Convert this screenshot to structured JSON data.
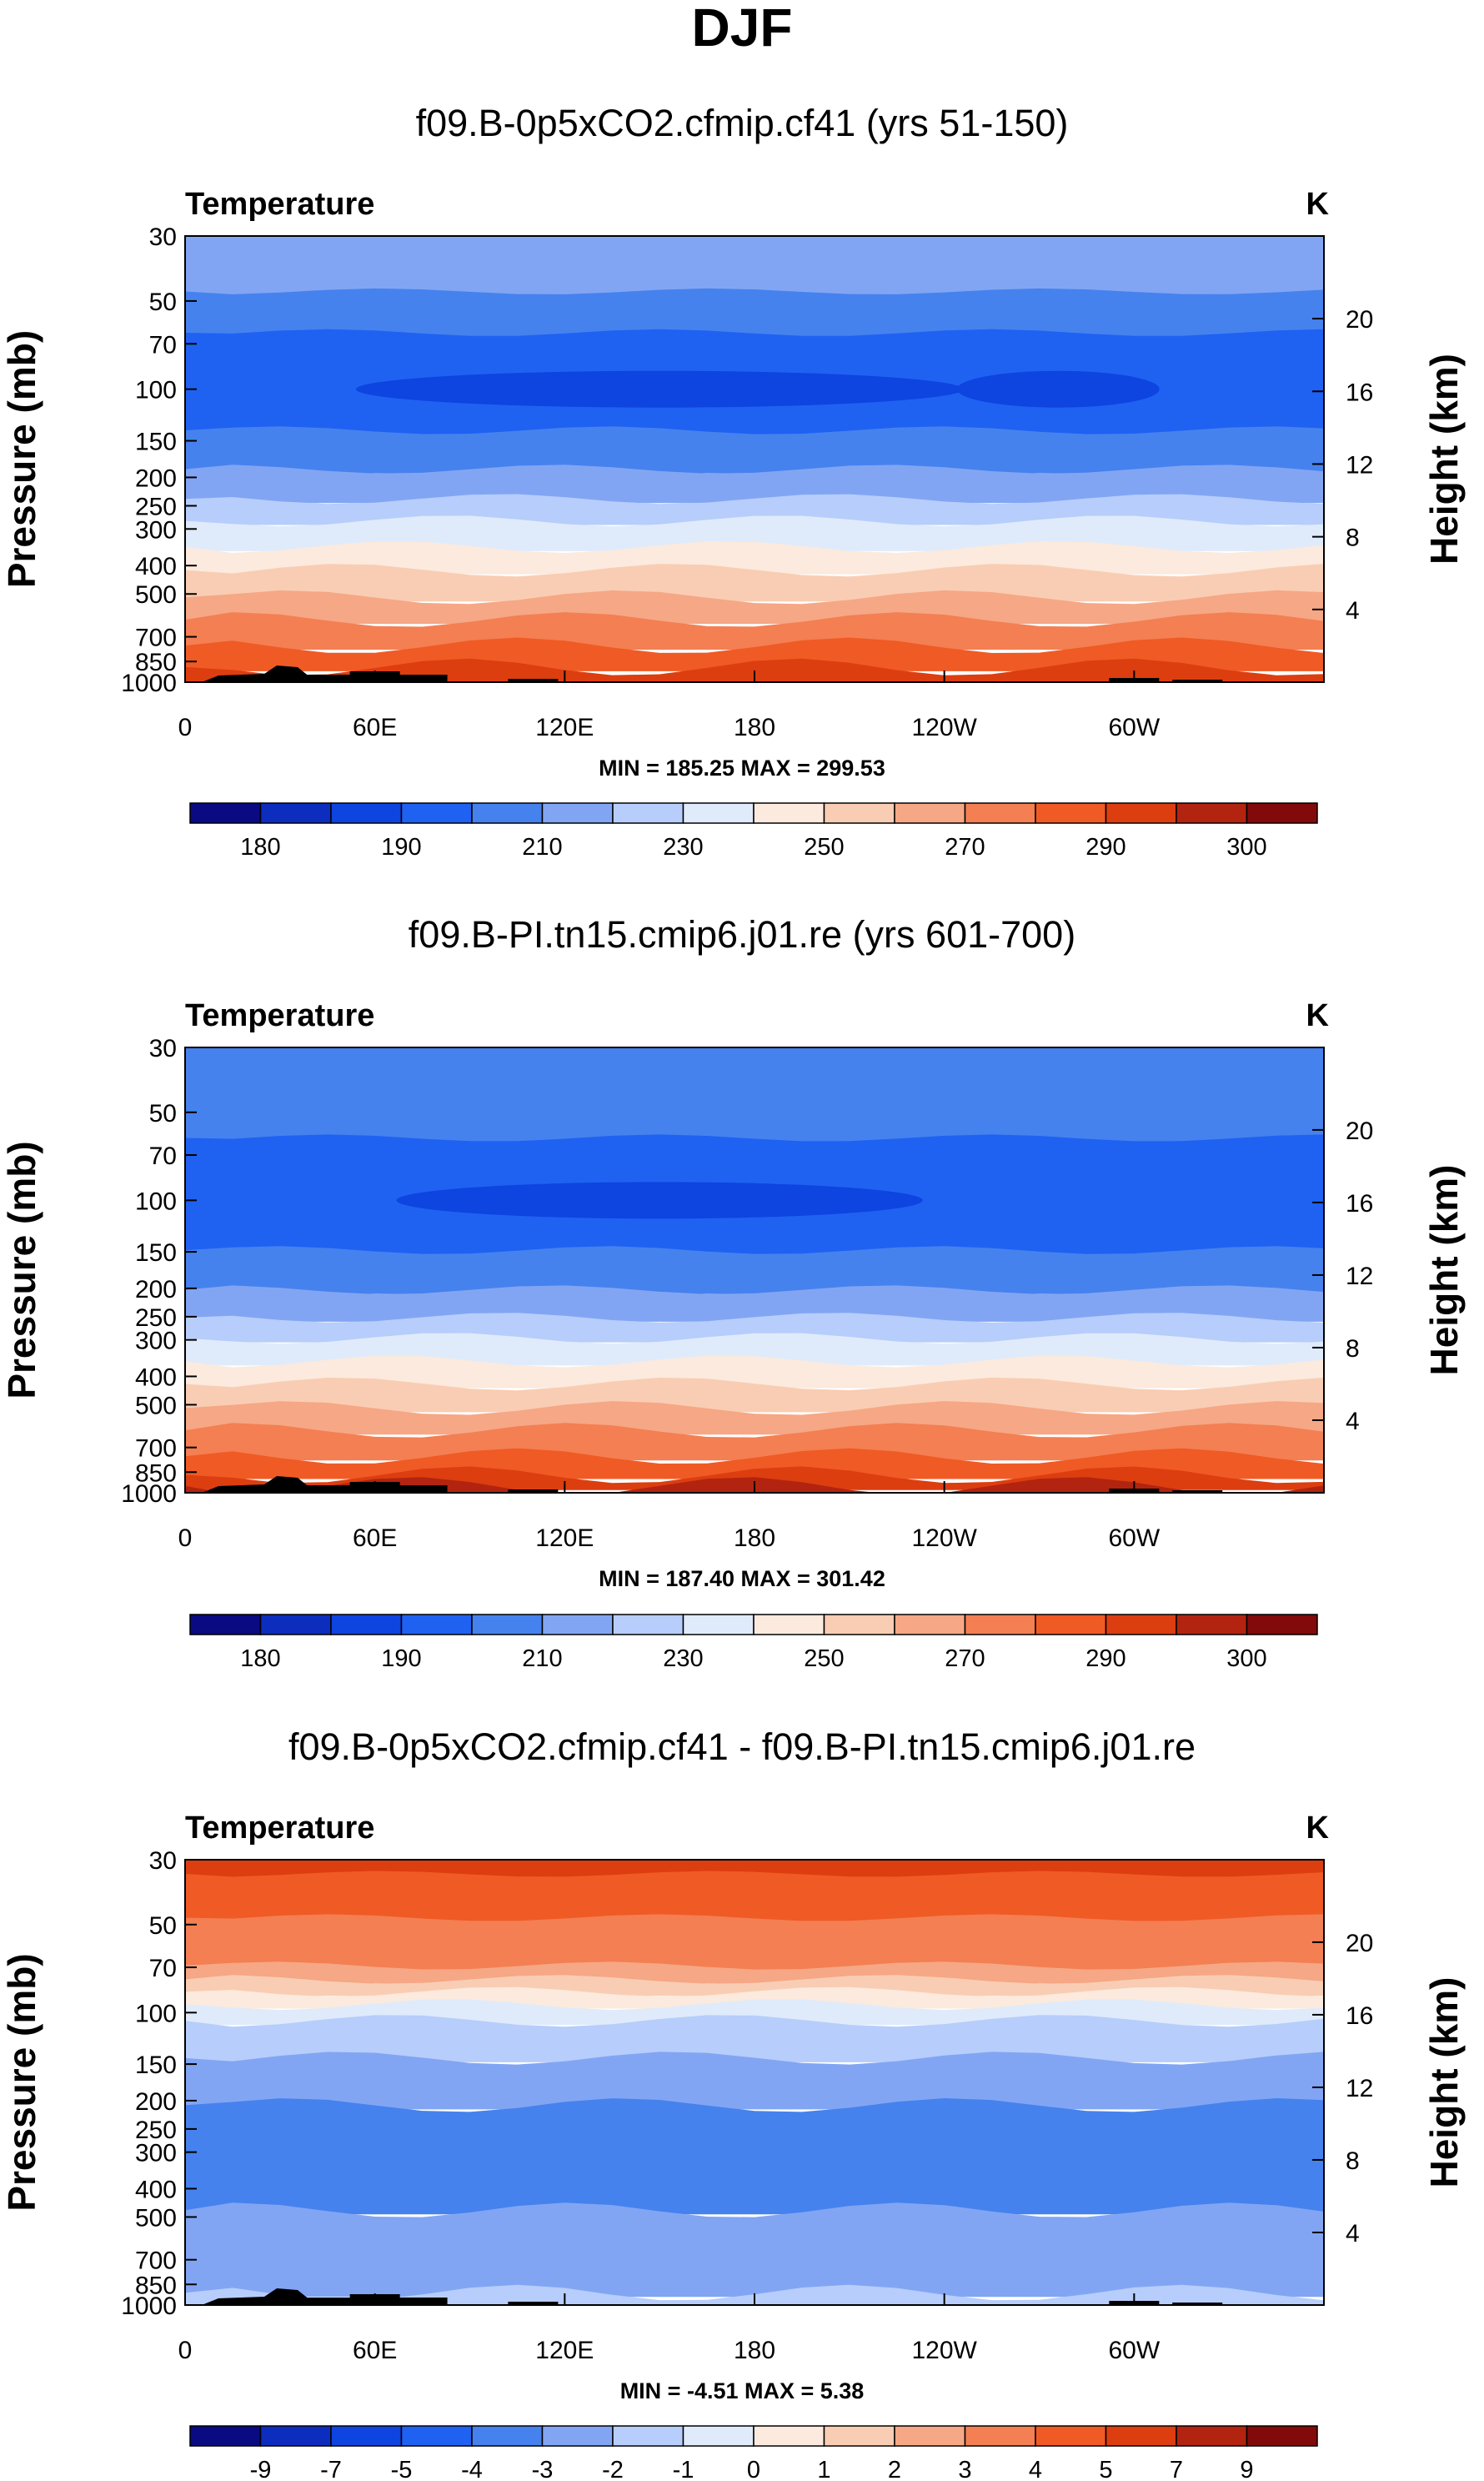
{
  "page_title": "DJF",
  "colors": {
    "palette": [
      "#0a0a82",
      "#0c2dbe",
      "#0e44e0",
      "#1f62f2",
      "#4582ee",
      "#82a5f3",
      "#b7cdfb",
      "#dfebfb",
      "#fbeadd",
      "#f9cdb3",
      "#f6a785",
      "#f37f53",
      "#f05a25",
      "#dc3e10",
      "#b22410",
      "#820a0a"
    ],
    "land": "#000000"
  },
  "chart_data": [
    {
      "type": "contour",
      "id": "p1",
      "title": "f09.B-0p5xCO2.cfmip.cf41 (yrs 51-150)",
      "var_label": "Temperature",
      "units": "K",
      "ylabel": "Pressure (mb)",
      "ylabel_right": "Height (km)",
      "y_ticks": [
        "30",
        "50",
        "70",
        "100",
        "150",
        "200",
        "250",
        "300",
        "400",
        "500",
        "700",
        "850",
        "1000"
      ],
      "y_tick_values": [
        30,
        50,
        70,
        100,
        150,
        200,
        250,
        300,
        400,
        500,
        700,
        850,
        1000
      ],
      "ylim": [
        1000,
        30
      ],
      "height_ticks": [
        "20",
        "16",
        "12",
        "8",
        "4"
      ],
      "height_tick_values": [
        20,
        16,
        12,
        8,
        4
      ],
      "x_ticks": [
        "0",
        "60E",
        "120E",
        "180",
        "120W",
        "60W"
      ],
      "x_tick_values": [
        0,
        60,
        120,
        180,
        240,
        300
      ],
      "xlim": [
        0,
        360
      ],
      "minmax": "MIN = 185.25   MAX = 299.53",
      "colorbar_labels": [
        "180",
        "190",
        "210",
        "230",
        "250",
        "270",
        "290",
        "300"
      ],
      "bands": [
        {
          "top": 30,
          "bottom": 47,
          "color": 5
        },
        {
          "top": 47,
          "bottom": 65,
          "color": 4
        },
        {
          "top": 65,
          "bottom": 140,
          "color": 3
        },
        {
          "top": 140,
          "bottom": 190,
          "color": 4
        },
        {
          "top": 190,
          "bottom": 240,
          "color": 5
        },
        {
          "top": 240,
          "bottom": 285,
          "color": 6
        },
        {
          "top": 285,
          "bottom": 350,
          "color": 7
        },
        {
          "top": 350,
          "bottom": 420,
          "color": 8
        },
        {
          "top": 420,
          "bottom": 520,
          "color": 9
        },
        {
          "top": 520,
          "bottom": 620,
          "color": 10
        },
        {
          "top": 620,
          "bottom": 760,
          "color": 11
        },
        {
          "top": 760,
          "bottom": 900,
          "color": 12
        },
        {
          "top": 900,
          "bottom": 1000,
          "color": 13
        }
      ],
      "cores": [
        {
          "lon": 150,
          "p": 100,
          "dlon": 60,
          "color": 2
        },
        {
          "lon": 276,
          "p": 100,
          "dlon": 20,
          "color": 2
        }
      ]
    },
    {
      "type": "contour",
      "id": "p2",
      "title": "f09.B-PI.tn15.cmip6.j01.re (yrs 601-700)",
      "var_label": "Temperature",
      "units": "K",
      "ylabel": "Pressure (mb)",
      "ylabel_right": "Height (km)",
      "y_ticks": [
        "30",
        "50",
        "70",
        "100",
        "150",
        "200",
        "250",
        "300",
        "400",
        "500",
        "700",
        "850",
        "1000"
      ],
      "y_tick_values": [
        30,
        50,
        70,
        100,
        150,
        200,
        250,
        300,
        400,
        500,
        700,
        850,
        1000
      ],
      "ylim": [
        1000,
        30
      ],
      "height_ticks": [
        "20",
        "16",
        "12",
        "8",
        "4"
      ],
      "height_tick_values": [
        20,
        16,
        12,
        8,
        4
      ],
      "x_ticks": [
        "0",
        "60E",
        "120E",
        "180",
        "120W",
        "60W"
      ],
      "x_tick_values": [
        0,
        60,
        120,
        180,
        240,
        300
      ],
      "xlim": [
        0,
        360
      ],
      "minmax": "MIN = 187.40   MAX = 301.42",
      "colorbar_labels": [
        "180",
        "190",
        "210",
        "230",
        "250",
        "270",
        "290",
        "300"
      ],
      "bands": [
        {
          "top": 30,
          "bottom": 42,
          "color": 4
        },
        {
          "top": 42,
          "bottom": 62,
          "color": 4
        },
        {
          "top": 62,
          "bottom": 150,
          "color": 3
        },
        {
          "top": 150,
          "bottom": 205,
          "color": 4
        },
        {
          "top": 205,
          "bottom": 255,
          "color": 5
        },
        {
          "top": 255,
          "bottom": 300,
          "color": 6
        },
        {
          "top": 300,
          "bottom": 360,
          "color": 7
        },
        {
          "top": 360,
          "bottom": 430,
          "color": 8
        },
        {
          "top": 430,
          "bottom": 520,
          "color": 9
        },
        {
          "top": 520,
          "bottom": 620,
          "color": 10
        },
        {
          "top": 620,
          "bottom": 760,
          "color": 11
        },
        {
          "top": 760,
          "bottom": 880,
          "color": 12
        },
        {
          "top": 880,
          "bottom": 960,
          "color": 13
        },
        {
          "top": 960,
          "bottom": 1000,
          "color": 14
        }
      ],
      "cores": [
        {
          "lon": 150,
          "p": 100,
          "dlon": 52,
          "color": 2
        }
      ]
    },
    {
      "type": "contour",
      "id": "p3",
      "title": "f09.B-0p5xCO2.cfmip.cf41 - f09.B-PI.tn15.cmip6.j01.re",
      "var_label": "Temperature",
      "units": "K",
      "ylabel": "Pressure (mb)",
      "ylabel_right": "Height (km)",
      "y_ticks": [
        "30",
        "50",
        "70",
        "100",
        "150",
        "200",
        "250",
        "300",
        "400",
        "500",
        "700",
        "850",
        "1000"
      ],
      "y_tick_values": [
        30,
        50,
        70,
        100,
        150,
        200,
        250,
        300,
        400,
        500,
        700,
        850,
        1000
      ],
      "ylim": [
        1000,
        30
      ],
      "height_ticks": [
        "20",
        "16",
        "12",
        "8",
        "4"
      ],
      "height_tick_values": [
        20,
        16,
        12,
        8,
        4
      ],
      "x_ticks": [
        "0",
        "60E",
        "120E",
        "180",
        "120W",
        "60W"
      ],
      "x_tick_values": [
        0,
        60,
        120,
        180,
        240,
        300
      ],
      "xlim": [
        0,
        360
      ],
      "minmax": "MIN =  -4.51   MAX =   5.38",
      "colorbar_labels": [
        "-9",
        "-7",
        "-5",
        "-4",
        "-3",
        "-2",
        "-1",
        "0",
        "1",
        "2",
        "3",
        "4",
        "5",
        "7",
        "9"
      ],
      "bands": [
        {
          "top": 30,
          "bottom": 34,
          "color": 13
        },
        {
          "top": 34,
          "bottom": 48,
          "color": 12
        },
        {
          "top": 48,
          "bottom": 70,
          "color": 11
        },
        {
          "top": 70,
          "bottom": 78,
          "color": 10
        },
        {
          "top": 78,
          "bottom": 86,
          "color": 9
        },
        {
          "top": 86,
          "bottom": 95,
          "color": 8
        },
        {
          "top": 95,
          "bottom": 108,
          "color": 7
        },
        {
          "top": 108,
          "bottom": 145,
          "color": 6
        },
        {
          "top": 145,
          "bottom": 210,
          "color": 5
        },
        {
          "top": 210,
          "bottom": 480,
          "color": 4
        },
        {
          "top": 480,
          "bottom": 920,
          "color": 5
        },
        {
          "top": 920,
          "bottom": 1000,
          "color": 6
        }
      ],
      "cores": []
    }
  ]
}
